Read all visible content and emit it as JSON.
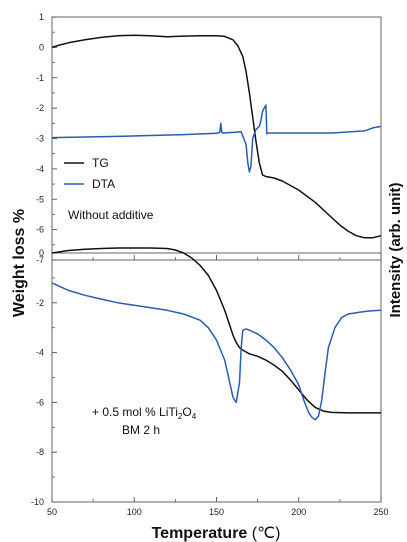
{
  "chart_data": {
    "type": "line",
    "x_axis": {
      "label": "Temperature",
      "unit": "(℃)",
      "range": [
        50,
        250
      ],
      "ticks": [
        50,
        100,
        150,
        200,
        250
      ]
    },
    "y_axis_left": {
      "label": "Weight loss %"
    },
    "y_axis_right": {
      "label": "Intensity (arb. unit)"
    },
    "colors": {
      "TG": "#111111",
      "DTA": "#2a5db0"
    },
    "panels": [
      {
        "id": "top",
        "ylim": [
          -7,
          1
        ],
        "yticks": [
          1,
          0,
          -1,
          -2,
          -3,
          -4,
          -5,
          -6,
          -7
        ],
        "legend": {
          "position": "left",
          "entries": [
            {
              "series": "TG",
              "label": "TG"
            },
            {
              "series": "DTA",
              "label": "DTA"
            }
          ]
        },
        "annotation": {
          "line1": "Without additive"
        },
        "series": [
          {
            "name": "TG",
            "x": [
              50,
              55,
              60,
              70,
              80,
              90,
              100,
              110,
              120,
              130,
              140,
              150,
              155,
              160,
              163,
              166,
              168,
              170,
              172,
              174,
              176,
              178,
              180,
              185,
              190,
              200,
              210,
              220,
              225,
              230,
              235,
              240,
              245,
              250
            ],
            "y": [
              0.0,
              0.08,
              0.15,
              0.25,
              0.33,
              0.38,
              0.4,
              0.38,
              0.35,
              0.37,
              0.38,
              0.38,
              0.36,
              0.25,
              0.05,
              -0.3,
              -0.8,
              -1.5,
              -2.3,
              -3.1,
              -3.8,
              -4.2,
              -4.25,
              -4.3,
              -4.4,
              -4.7,
              -5.1,
              -5.6,
              -5.85,
              -6.05,
              -6.2,
              -6.27,
              -6.27,
              -6.2
            ]
          },
          {
            "name": "DTA",
            "x": [
              50,
              70,
              90,
              110,
              130,
              150,
              152,
              152.6,
              153.2,
              154,
              160,
              165,
              168,
              169,
              170,
              171,
              172,
              174,
              176,
              177,
              178,
              179,
              180,
              180.6,
              181.5,
              185,
              200,
              220,
              240,
              245,
              250
            ],
            "y": [
              -2.97,
              -2.95,
              -2.93,
              -2.9,
              -2.87,
              -2.83,
              -2.8,
              -2.5,
              -2.8,
              -2.82,
              -2.8,
              -2.78,
              -3.2,
              -3.8,
              -4.1,
              -3.9,
              -3.0,
              -2.7,
              -2.6,
              -2.4,
              -2.1,
              -2.0,
              -1.9,
              -2.85,
              -2.82,
              -2.82,
              -2.82,
              -2.82,
              -2.75,
              -2.65,
              -2.6
            ]
          }
        ]
      },
      {
        "id": "bottom",
        "ylim": [
          -10,
          0
        ],
        "yticks": [
          0,
          -2,
          -4,
          -6,
          -8,
          -10
        ],
        "annotation": {
          "line1_prefix": "+ 0.5 mol % LiTi",
          "line1_sub1": "2",
          "line1_mid": "O",
          "line1_sub2": "4",
          "line2": "BM 2 h"
        },
        "series": [
          {
            "name": "TG",
            "x": [
              50,
              60,
              70,
              80,
              90,
              100,
              110,
              120,
              125,
              130,
              135,
              140,
              145,
              150,
              155,
              158,
              160,
              162,
              164,
              166,
              170,
              175,
              180,
              185,
              190,
              195,
              200,
              205,
              210,
              215,
              220,
              230,
              240,
              250
            ],
            "y": [
              0.0,
              0.1,
              0.15,
              0.18,
              0.2,
              0.2,
              0.2,
              0.18,
              0.12,
              0.0,
              -0.2,
              -0.5,
              -0.9,
              -1.5,
              -2.3,
              -2.9,
              -3.3,
              -3.6,
              -3.8,
              -3.9,
              -4.05,
              -4.15,
              -4.3,
              -4.5,
              -4.75,
              -5.1,
              -5.5,
              -5.9,
              -6.2,
              -6.35,
              -6.4,
              -6.42,
              -6.42,
              -6.42
            ]
          },
          {
            "name": "DTA",
            "x": [
              50,
              60,
              70,
              80,
              90,
              100,
              110,
              120,
              130,
              140,
              145,
              150,
              155,
              158,
              160,
              162,
              164,
              165,
              166,
              168,
              170,
              175,
              180,
              185,
              190,
              195,
              200,
              203,
              206,
              208,
              210,
              212,
              214,
              216,
              218,
              222,
              226,
              230,
              235,
              240,
              245,
              250
            ],
            "y": [
              -1.2,
              -1.5,
              -1.7,
              -1.85,
              -2.0,
              -2.1,
              -2.2,
              -2.3,
              -2.45,
              -2.7,
              -3.0,
              -3.5,
              -4.3,
              -5.2,
              -5.8,
              -6.0,
              -5.2,
              -3.8,
              -3.1,
              -3.05,
              -3.1,
              -3.25,
              -3.5,
              -3.8,
              -4.2,
              -4.7,
              -5.3,
              -5.9,
              -6.4,
              -6.6,
              -6.7,
              -6.55,
              -5.9,
              -4.8,
              -3.8,
              -3.0,
              -2.6,
              -2.45,
              -2.4,
              -2.35,
              -2.32,
              -2.3
            ]
          }
        ]
      }
    ]
  }
}
